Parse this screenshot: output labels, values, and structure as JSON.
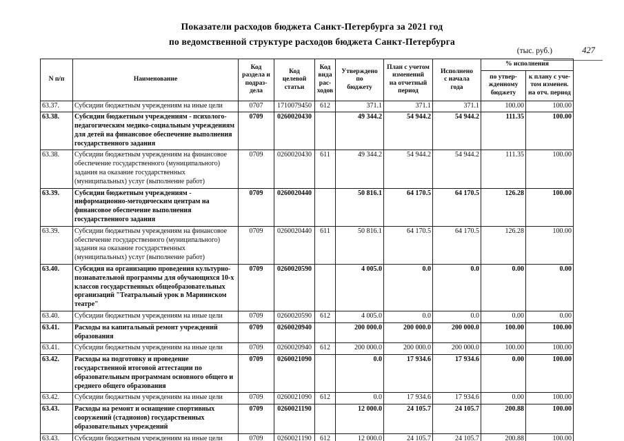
{
  "page": {
    "title_line1": "Показатели расходов бюджета Санкт-Петербурга за 2021 год",
    "title_line2": "по ведомственной структуре расходов бюджета Санкт-Петербурга",
    "units_note": "(тыс. руб.)",
    "page_number": "427"
  },
  "table": {
    "headers": {
      "num": "N п/п",
      "name": "Наименование",
      "section": "Код\nраздела и\nподраз-\nдела",
      "article": "Код\nцелевой\nстатьи",
      "vtype": "Код\nвида\nрас-\nходов",
      "approved": "Утверждено\nпо\nбюджету",
      "plan": "План с учетом\nизменений\nна отчетный\nпериод",
      "executed": "Исполнено\nс начала\nгода",
      "pct_group": "% исполнения",
      "pct_budget": "по утвер-\nжденному\nбюджету",
      "pct_plan": "к плану с уче-\nтом изменен.\nна отч. период"
    },
    "rows": [
      {
        "num": "63.37.",
        "name": "Субсидии бюджетным учреждениям на иные цели",
        "section": "0707",
        "article": "1710079450",
        "vtype": "612",
        "approved": "371.1",
        "plan": "371.1",
        "executed": "371.1",
        "pct_budget": "100.00",
        "pct_plan": "100.00",
        "bold": false
      },
      {
        "num": "63.38.",
        "name": "Субсидии бюджетным учреждениям - психолого-педагогическим медико-социальным учреждениям для детей на финансовое обеспечение выполнения государственного задания",
        "section": "0709",
        "article": "0260020430",
        "vtype": "",
        "approved": "49 344.2",
        "plan": "54 944.2",
        "executed": "54 944.2",
        "pct_budget": "111.35",
        "pct_plan": "100.00",
        "bold": true
      },
      {
        "num": "63.38.",
        "name": "Субсидии бюджетным учреждениям на финансовое обеспечение государственного (муниципального) задания на оказание государственных (муниципальных) услуг (выполнение работ)",
        "section": "0709",
        "article": "0260020430",
        "vtype": "611",
        "approved": "49 344.2",
        "plan": "54 944.2",
        "executed": "54 944.2",
        "pct_budget": "111.35",
        "pct_plan": "100.00",
        "bold": false
      },
      {
        "num": "63.39.",
        "name": "Субсидии бюджетным учреждениям - информационно-методическим центрам на финансовое обеспечение выполнения государственного задания",
        "section": "0709",
        "article": "0260020440",
        "vtype": "",
        "approved": "50 816.1",
        "plan": "64 170.5",
        "executed": "64 170.5",
        "pct_budget": "126.28",
        "pct_plan": "100.00",
        "bold": true
      },
      {
        "num": "63.39.",
        "name": "Субсидии бюджетным учреждениям на финансовое обеспечение государственного (муниципального) задания на оказание государственных (муниципальных) услуг (выполнение работ)",
        "section": "0709",
        "article": "0260020440",
        "vtype": "611",
        "approved": "50 816.1",
        "plan": "64 170.5",
        "executed": "64 170.5",
        "pct_budget": "126.28",
        "pct_plan": "100.00",
        "bold": false
      },
      {
        "num": "63.40.",
        "name": "Субсидия на организацию проведения культурно-познавательной программы для обучающихся 10-х классов государственных общеобразовательных организаций \"Театральный урок в Мариинском театре\"",
        "section": "0709",
        "article": "0260020590",
        "vtype": "",
        "approved": "4 005.0",
        "plan": "0.0",
        "executed": "0.0",
        "pct_budget": "0.00",
        "pct_plan": "0.00",
        "bold": true
      },
      {
        "num": "63.40.",
        "name": "Субсидии бюджетным учреждениям на иные цели",
        "section": "0709",
        "article": "0260020590",
        "vtype": "612",
        "approved": "4 005.0",
        "plan": "0.0",
        "executed": "0.0",
        "pct_budget": "0.00",
        "pct_plan": "0.00",
        "bold": false
      },
      {
        "num": "63.41.",
        "name": "Расходы на капитальный ремонт учреждений образования",
        "section": "0709",
        "article": "0260020940",
        "vtype": "",
        "approved": "200 000.0",
        "plan": "200 000.0",
        "executed": "200 000.0",
        "pct_budget": "100.00",
        "pct_plan": "100.00",
        "bold": true
      },
      {
        "num": "63.41.",
        "name": "Субсидии бюджетным учреждениям на иные цели",
        "section": "0709",
        "article": "0260020940",
        "vtype": "612",
        "approved": "200 000.0",
        "plan": "200 000.0",
        "executed": "200 000.0",
        "pct_budget": "100.00",
        "pct_plan": "100.00",
        "bold": false
      },
      {
        "num": "63.42.",
        "name": "Расходы на подготовку и проведение государственной итоговой аттестации по образовательным программам основного общего и среднего общего образования",
        "section": "0709",
        "article": "0260021090",
        "vtype": "",
        "approved": "0.0",
        "plan": "17 934.6",
        "executed": "17 934.6",
        "pct_budget": "0.00",
        "pct_plan": "100.00",
        "bold": true
      },
      {
        "num": "63.42.",
        "name": "Субсидии бюджетным учреждениям на иные цели",
        "section": "0709",
        "article": "0260021090",
        "vtype": "612",
        "approved": "0.0",
        "plan": "17 934.6",
        "executed": "17 934.6",
        "pct_budget": "0.00",
        "pct_plan": "100.00",
        "bold": false
      },
      {
        "num": "63.43.",
        "name": "Расходы на ремонт и оснащение спортивных сооружений (стадионов) государственных образовательных учреждений",
        "section": "0709",
        "article": "0260021190",
        "vtype": "",
        "approved": "12 000.0",
        "plan": "24 105.7",
        "executed": "24 105.7",
        "pct_budget": "200.88",
        "pct_plan": "100.00",
        "bold": true
      },
      {
        "num": "63.43.",
        "name": "Субсидии бюджетным учреждениям на иные цели",
        "section": "0709",
        "article": "0260021190",
        "vtype": "612",
        "approved": "12 000.0",
        "plan": "24 105.7",
        "executed": "24 105.7",
        "pct_budget": "200.88",
        "pct_plan": "100.00",
        "bold": false
      }
    ]
  }
}
